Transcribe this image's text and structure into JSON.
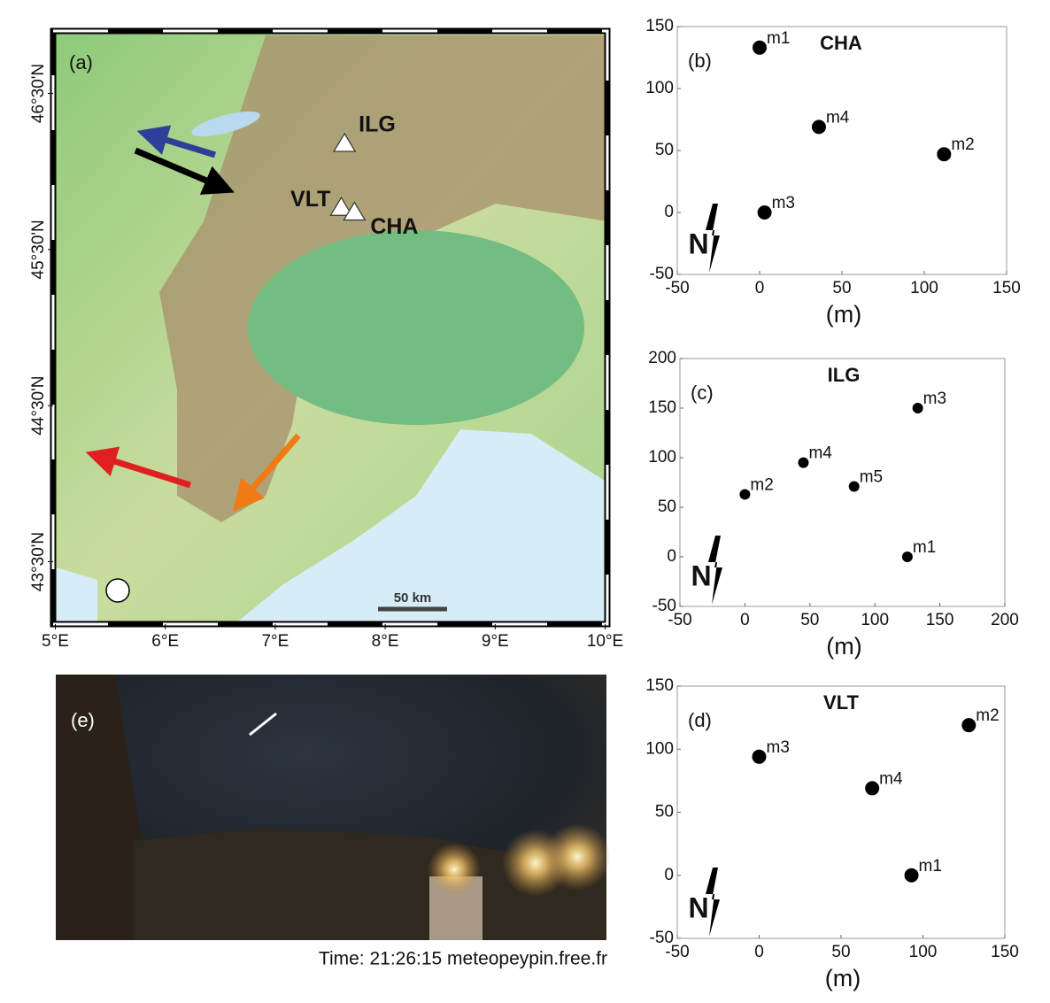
{
  "map": {
    "panel_label": "(a)",
    "xlim": [
      4.98,
      10.02
    ],
    "ylim": [
      43.1,
      46.9
    ],
    "xticks": [
      {
        "value": 5,
        "label": "5°E"
      },
      {
        "value": 6,
        "label": "6°E"
      },
      {
        "value": 7,
        "label": "7°E"
      },
      {
        "value": 8,
        "label": "8°E"
      },
      {
        "value": 9,
        "label": "9°E"
      },
      {
        "value": 10,
        "label": "10°E"
      }
    ],
    "yticks": [
      {
        "value": 46.5,
        "label": "46°30'N"
      },
      {
        "value": 45.5,
        "label": "45°30'N"
      },
      {
        "value": 44.5,
        "label": "44°30'N"
      },
      {
        "value": 43.5,
        "label": "43°30'N"
      }
    ],
    "stations": [
      {
        "label": "ILG",
        "lon": 7.63,
        "lat": 46.18
      },
      {
        "label": "VLT",
        "lon": 7.6,
        "lat": 45.77
      },
      {
        "label": "CHA",
        "lon": 7.72,
        "lat": 45.74
      }
    ],
    "scale_label": "50 km"
  },
  "chart_data": [
    {
      "type": "scatter",
      "panel_label": "(b)",
      "title": "CHA",
      "xlabel": "(m)",
      "north_label": "N",
      "marker_size": 8,
      "point_labels": [
        "m1",
        "m4",
        "m2",
        "m3"
      ],
      "x": [
        0,
        36,
        112,
        3
      ],
      "values": [
        133,
        69,
        47,
        0
      ],
      "xlim": [
        -50,
        150
      ],
      "ylim": [
        -50,
        150
      ],
      "xticks": [
        -50,
        0,
        50,
        100,
        150
      ],
      "yticks": [
        -50,
        0,
        50,
        100,
        150
      ],
      "color": "#000000"
    },
    {
      "type": "scatter",
      "panel_label": "(c)",
      "title": "ILG",
      "xlabel": "(m)",
      "north_label": "N",
      "marker_size": 6,
      "point_labels": [
        "m3",
        "m4",
        "m2",
        "m5",
        "m1"
      ],
      "x": [
        133,
        45,
        0,
        84,
        125
      ],
      "values": [
        150,
        95,
        63,
        71,
        0
      ],
      "xlim": [
        -50,
        200
      ],
      "ylim": [
        -50,
        200
      ],
      "xticks": [
        -50,
        0,
        50,
        100,
        150,
        200
      ],
      "yticks": [
        -50,
        0,
        50,
        100,
        150,
        200
      ],
      "color": "#000000"
    },
    {
      "type": "scatter",
      "panel_label": "(d)",
      "title": "VLT",
      "xlabel": "(m)",
      "north_label": "N",
      "marker_size": 8,
      "point_labels": [
        "m2",
        "m3",
        "m4",
        "m1"
      ],
      "x": [
        128,
        0,
        69,
        93
      ],
      "values": [
        119,
        94,
        69,
        0
      ],
      "xlim": [
        -50,
        150
      ],
      "ylim": [
        -50,
        150
      ],
      "xticks": [
        -50,
        0,
        50,
        100,
        150
      ],
      "yticks": [
        -50,
        0,
        50,
        100,
        150
      ],
      "color": "#000000"
    }
  ],
  "photo": {
    "panel_label": "(e)",
    "caption": "Time: 21:26:15 meteopeypin.free.fr"
  }
}
